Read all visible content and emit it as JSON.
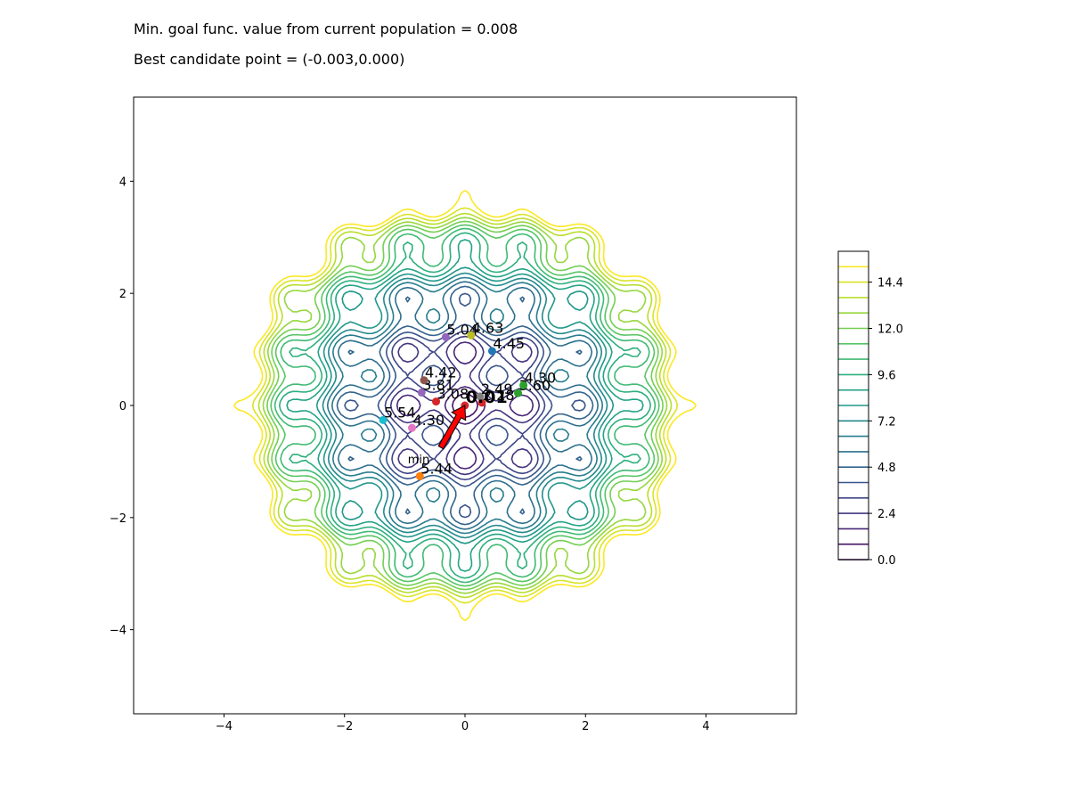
{
  "header": {
    "line1": "Min. goal func. value from current population = 0.008",
    "line2": "Best candidate point = (-0.003,0.000)"
  },
  "chart_data": {
    "type": "contour",
    "function": "rastrigin",
    "xlim": [
      -5.5,
      5.5
    ],
    "ylim": [
      -5.5,
      5.5
    ],
    "x_ticks": [
      -4,
      -2,
      0,
      2,
      4
    ],
    "y_ticks": [
      -4,
      -2,
      0,
      2,
      4
    ],
    "x_tick_labels": [
      "−4",
      "−2",
      "0",
      "2",
      "4"
    ],
    "y_tick_labels": [
      "−4",
      "−2",
      "0",
      "2",
      "4"
    ],
    "contour_levels": [
      0.0,
      0.8,
      1.6,
      2.4,
      3.2,
      4.0,
      4.8,
      5.6,
      6.4,
      7.2,
      8.0,
      8.8,
      9.6,
      10.4,
      11.2,
      12.0,
      12.8,
      13.6,
      14.4,
      15.2
    ],
    "colorbar_ticks": [
      0.0,
      2.4,
      4.8,
      7.2,
      9.6,
      12.0,
      14.4
    ],
    "colorbar_tick_labels": [
      "0.0",
      "2.4",
      "4.8",
      "7.2",
      "9.6",
      "12.0",
      "14.4"
    ],
    "grid": false,
    "points": [
      {
        "x": 0.45,
        "y": 0.97,
        "label": "4.45",
        "color": "#1f77b4"
      },
      {
        "x": -0.75,
        "y": -1.26,
        "label": "5.44",
        "color": "#ff7f0e"
      },
      {
        "x": 0.88,
        "y": 0.22,
        "label": "3.60",
        "color": "#2ca02c"
      },
      {
        "x": 0.97,
        "y": 0.36,
        "label": "4.30",
        "color": "#2ca02c"
      },
      {
        "x": -0.48,
        "y": 0.07,
        "label": "3.08",
        "color": "#d62728"
      },
      {
        "x": 0.28,
        "y": 0.05,
        "label": "2.28",
        "color": "#d62728"
      },
      {
        "x": -0.72,
        "y": 0.23,
        "label": "3.81",
        "color": "#9467bd"
      },
      {
        "x": -0.32,
        "y": 1.22,
        "label": "5.04",
        "color": "#9467bd"
      },
      {
        "x": -0.68,
        "y": 0.45,
        "label": "4.42",
        "color": "#8c564b"
      },
      {
        "x": -0.88,
        "y": -0.4,
        "label": "4.30",
        "color": "#e377c2"
      },
      {
        "x": 0.1,
        "y": 1.25,
        "label": "4.63",
        "color": "#bcbd22"
      },
      {
        "x": -1.36,
        "y": -0.26,
        "label": "5.54",
        "color": "#17becf"
      },
      {
        "x": 0.25,
        "y": 0.16,
        "label": "2.49",
        "color": "#7f7f7f"
      },
      {
        "x": -0.003,
        "y": 0.0,
        "label": "0.01",
        "color": "#d62728"
      }
    ],
    "annotation": {
      "text": "min",
      "x": -0.003,
      "y": 0.0,
      "text_x": -0.95,
      "text_y": -0.97,
      "arrow_color": "#ff0000"
    }
  }
}
